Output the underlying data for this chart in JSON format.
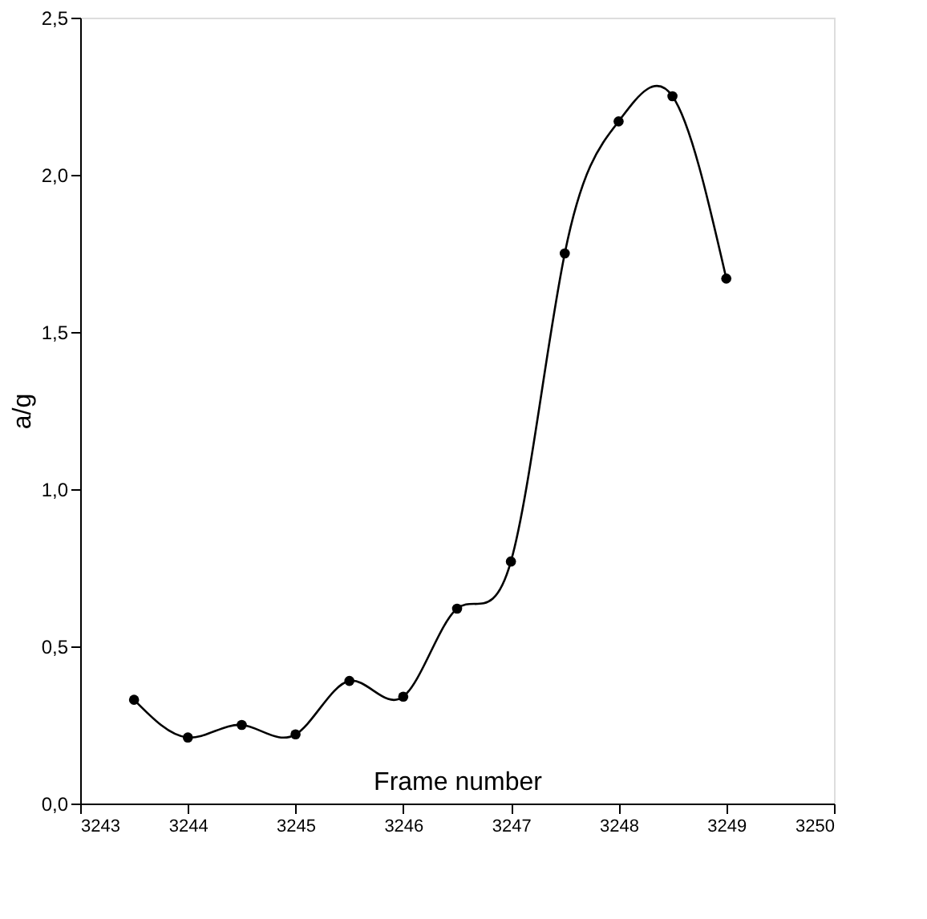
{
  "chart_data": {
    "type": "line",
    "xlabel": "Frame number",
    "ylabel": "a/g",
    "x": [
      3243.5,
      3244,
      3244.5,
      3245,
      3245.5,
      3246,
      3246.5,
      3247,
      3247.5,
      3248,
      3248.5,
      3249
    ],
    "series": [
      {
        "color": "#000000",
        "values": [
          0.33,
          0.21,
          0.25,
          0.22,
          0.39,
          0.34,
          0.62,
          0.77,
          1.75,
          2.17,
          2.25,
          1.67
        ]
      }
    ],
    "xlim": [
      3243,
      3250
    ],
    "xticks": [
      3243,
      3244,
      3245,
      3246,
      3247,
      3248,
      3249,
      3250
    ],
    "ylim": [
      0,
      2.5
    ],
    "yticks": [
      {
        "value": 0,
        "label": "0,0"
      },
      {
        "value": 0.5,
        "label": "0,5"
      },
      {
        "value": 1,
        "label": "1,0"
      },
      {
        "value": 1.5,
        "label": "1,5"
      },
      {
        "value": 2,
        "label": "2,0"
      },
      {
        "value": 2.5,
        "label": "2,5"
      }
    ],
    "grid": false,
    "marker": "circle",
    "line_style": "solid"
  }
}
